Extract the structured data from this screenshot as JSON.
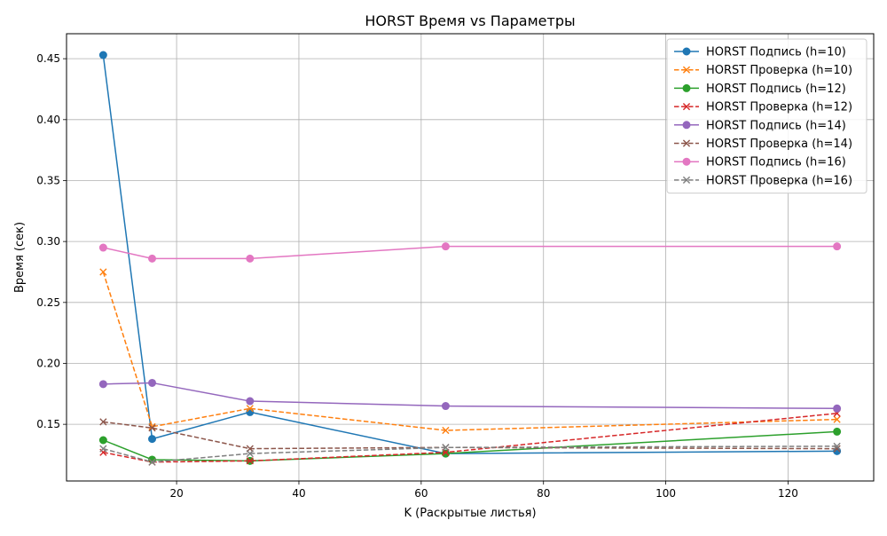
{
  "chart_data": {
    "type": "line",
    "title": "HORST Время vs Параметры",
    "xlabel": "K (Раскрытые листья)",
    "ylabel": "Время (сек)",
    "xlim": [
      2,
      134
    ],
    "ylim": [
      0.1035,
      0.4705
    ],
    "xticks": [
      20,
      40,
      60,
      80,
      100,
      120
    ],
    "yticks": [
      0.15,
      0.2,
      0.25,
      0.3,
      0.35,
      0.4,
      0.45
    ],
    "xtick_labels": [
      "20",
      "40",
      "60",
      "80",
      "100",
      "120"
    ],
    "ytick_labels": [
      "0.15",
      "0.20",
      "0.25",
      "0.30",
      "0.35",
      "0.40",
      "0.45"
    ],
    "grid": true,
    "legend_position": "top-right",
    "x": [
      8,
      16,
      32,
      64,
      128
    ],
    "series": [
      {
        "name": "HORST Подпись (h=10)",
        "values": [
          0.453,
          0.138,
          0.16,
          0.126,
          0.128
        ],
        "color": "#1f77b4",
        "style": "solid",
        "marker": "circle"
      },
      {
        "name": "HORST Проверка (h=10)",
        "values": [
          0.275,
          0.148,
          0.163,
          0.145,
          0.154
        ],
        "color": "#ff7f0e",
        "style": "dashed",
        "marker": "x"
      },
      {
        "name": "HORST Подпись (h=12)",
        "values": [
          0.137,
          0.121,
          0.12,
          0.126,
          0.144
        ],
        "color": "#2ca02c",
        "style": "solid",
        "marker": "circle"
      },
      {
        "name": "HORST Проверка (h=12)",
        "values": [
          0.127,
          0.119,
          0.12,
          0.127,
          0.159
        ],
        "color": "#d62728",
        "style": "dashed",
        "marker": "x"
      },
      {
        "name": "HORST Подпись (h=14)",
        "values": [
          0.183,
          0.184,
          0.169,
          0.165,
          0.163
        ],
        "color": "#9467bd",
        "style": "solid",
        "marker": "circle"
      },
      {
        "name": "HORST Проверка (h=14)",
        "values": [
          0.152,
          0.147,
          0.13,
          0.131,
          0.13
        ],
        "color": "#8c564b",
        "style": "dashed",
        "marker": "x"
      },
      {
        "name": "HORST Подпись (h=16)",
        "values": [
          0.295,
          0.286,
          0.286,
          0.296,
          0.296
        ],
        "color": "#e377c2",
        "style": "solid",
        "marker": "circle"
      },
      {
        "name": "HORST Проверка (h=16)",
        "values": [
          0.13,
          0.119,
          0.126,
          0.131,
          0.132
        ],
        "color": "#7f7f7f",
        "style": "dashed",
        "marker": "x"
      }
    ]
  }
}
